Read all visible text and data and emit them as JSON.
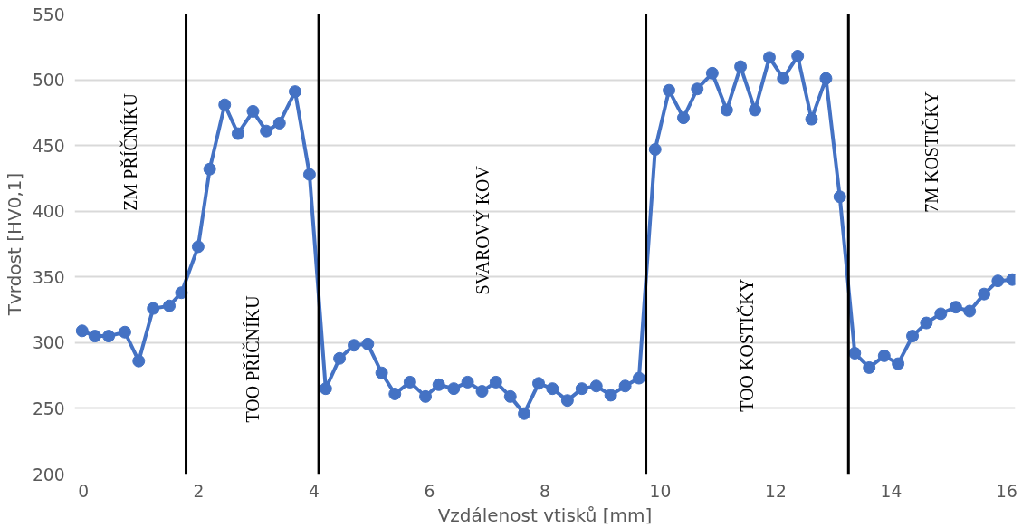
{
  "chart_data": {
    "type": "line",
    "xlabel": "Vzdálenost vtisků [mm]",
    "ylabel": "Tvrdost [HV0,1]",
    "x": [
      -0.02,
      0.2,
      0.44,
      0.72,
      0.96,
      1.21,
      1.49,
      1.7,
      1.99,
      2.19,
      2.45,
      2.68,
      2.94,
      3.17,
      3.4,
      3.67,
      3.92,
      4.2,
      4.44,
      4.69,
      4.93,
      5.17,
      5.4,
      5.66,
      5.93,
      6.16,
      6.42,
      6.66,
      6.91,
      7.15,
      7.4,
      7.64,
      7.89,
      8.13,
      8.39,
      8.64,
      8.89,
      9.14,
      9.39,
      9.63,
      9.91,
      10.15,
      10.4,
      10.64,
      10.9,
      11.15,
      11.39,
      11.64,
      11.89,
      12.13,
      12.38,
      12.62,
      12.87,
      13.11,
      13.37,
      13.62,
      13.88,
      14.12,
      14.37,
      14.61,
      14.86,
      15.12,
      15.36,
      15.61,
      15.85,
      16.1
    ],
    "values": [
      309,
      305,
      305,
      308,
      286,
      326,
      328,
      338,
      373,
      432,
      481,
      459,
      476,
      461,
      467,
      491,
      428,
      265,
      288,
      298,
      299,
      277,
      261,
      270,
      259,
      268,
      265,
      270,
      263,
      270,
      259,
      246,
      269,
      265,
      256,
      265,
      267,
      260,
      267,
      273,
      447,
      492,
      471,
      493,
      505,
      477,
      510,
      477,
      517,
      501,
      518,
      470,
      501,
      411,
      292,
      281,
      290,
      284,
      305,
      315,
      322,
      327,
      324,
      337,
      347,
      348
    ],
    "color": "#4472c4",
    "marker": "circle",
    "line_style": "solid",
    "xlim": [
      -0.15,
      16.15
    ],
    "ylim": [
      200,
      550
    ],
    "xticks": [
      0,
      2,
      4,
      6,
      8,
      10,
      12,
      14,
      16
    ],
    "yticks": [
      200,
      250,
      300,
      350,
      400,
      450,
      500,
      550
    ],
    "grid": "y",
    "ref_lines": [
      {
        "axis": "x",
        "value": 1.78,
        "color": "#000000"
      },
      {
        "axis": "x",
        "value": 4.08,
        "color": "#000000"
      },
      {
        "axis": "x",
        "value": 9.75,
        "color": "#000000"
      },
      {
        "axis": "x",
        "value": 13.26,
        "color": "#000000"
      }
    ],
    "annotations": [
      "ZM PŘÍČNÍKU",
      "TOO PŘÍČNÍKU",
      "SVAROVÝ KOV",
      "TOO KOSTIČKY",
      "7M KOSTIČKY"
    ]
  }
}
